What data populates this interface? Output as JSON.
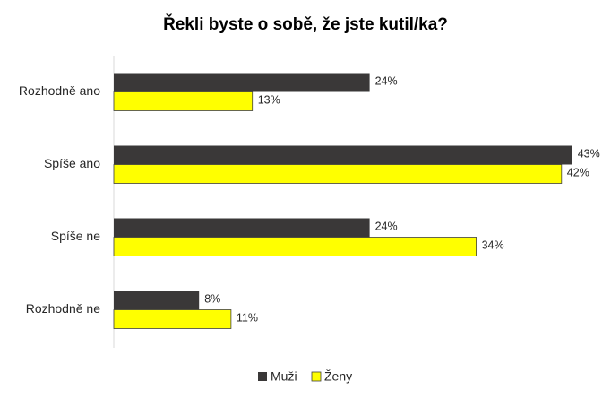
{
  "chart_data": {
    "type": "bar",
    "orientation": "horizontal",
    "title": "Řekli byste o sobě, že jste kutil/ka?",
    "categories": [
      "Rozhodně ano",
      "Spíše ano",
      "Spíše ne",
      "Rozhodně ne"
    ],
    "series": [
      {
        "name": "Muži",
        "color": "#3a3838",
        "values": [
          24,
          43,
          24,
          8
        ],
        "value_labels": [
          "24%",
          "43%",
          "24%",
          "8%"
        ]
      },
      {
        "name": "Ženy",
        "color": "#ffff00",
        "values": [
          13,
          42,
          34,
          11
        ],
        "value_labels": [
          "13%",
          "42%",
          "34%",
          "11%"
        ]
      }
    ],
    "legend": "bottom"
  }
}
